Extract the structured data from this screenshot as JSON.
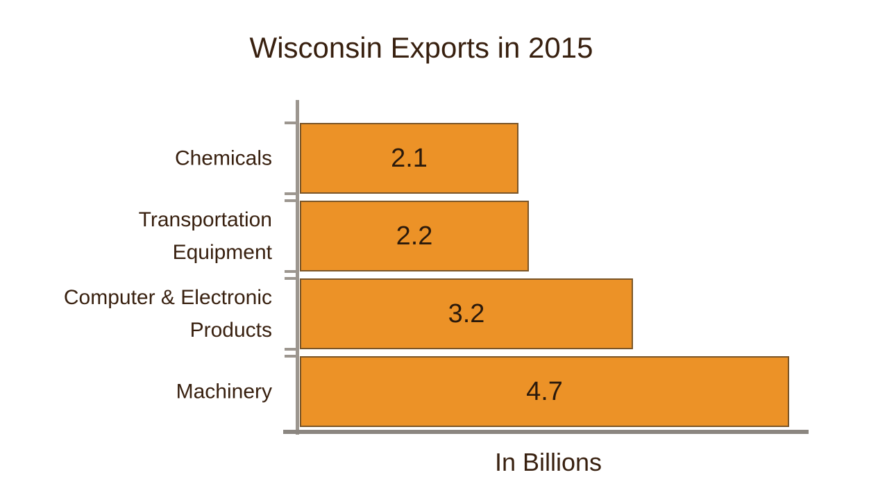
{
  "chart_data": {
    "type": "bar",
    "orientation": "horizontal",
    "title": "Wisconsin Exports in 2015",
    "xlabel": "In Billions",
    "ylabel": "",
    "categories": [
      "Chemicals",
      "Transportation Equipment",
      "Computer & Electronic Products",
      "Machinery"
    ],
    "category_display_lines": [
      [
        "Chemicals"
      ],
      [
        "Transportation",
        "Equipment"
      ],
      [
        "Computer & Electronic",
        "Products"
      ],
      [
        "Machinery"
      ]
    ],
    "values": [
      2.1,
      2.2,
      3.2,
      4.7
    ],
    "value_labels": [
      "2.1",
      "2.2",
      "3.2",
      "4.7"
    ],
    "xlim": [
      0,
      4.9
    ],
    "grid": false,
    "legend": false,
    "x_tick_labels": [],
    "colors": {
      "bar_fill": "#ec9227",
      "bar_border": "#7a5528",
      "y_axis": "#9c968f",
      "x_axis": "#8b8680",
      "title_text": "#38200f",
      "label_text": "#38200f",
      "value_text": "#2b1a0c"
    }
  }
}
